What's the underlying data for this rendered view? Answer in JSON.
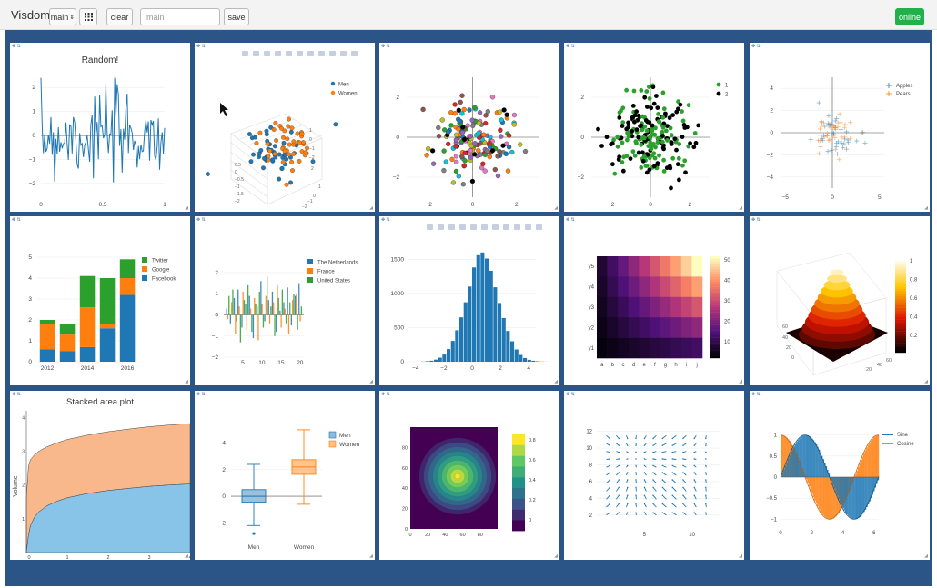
{
  "app": {
    "title": "Visdom"
  },
  "toolbar": {
    "env_select": "main",
    "env_select_arrow": "⇕",
    "grid_icon": "grid-icon",
    "clear_label": "clear",
    "filter_placeholder": "main",
    "save_label": "save",
    "status_label": "online"
  },
  "colors": {
    "board": "#2b5487",
    "online": "#22b04a",
    "blue": "#1f77b4",
    "orange": "#ff7f0e",
    "green": "#2ca02c",
    "black": "#000000"
  },
  "modebar_icons": [
    "camera-icon",
    "save-icon",
    "zoom-icon",
    "pan-icon",
    "zoom-in-icon",
    "zoom-out-icon",
    "autoscale-icon",
    "reset-icon",
    "spike-icon",
    "hover-icon",
    "plotly-icon"
  ],
  "pane_controls": {
    "drag_handle": "✥ ⇅",
    "resize_handle": "◢"
  },
  "chart_data": [
    {
      "id": "random-line",
      "type": "line",
      "title": "Random!",
      "xlim": [
        0,
        1
      ],
      "ylim": [
        -2.5,
        2.5
      ],
      "xticks": [
        "0",
        "0.5",
        "1"
      ],
      "yticks": [
        "2",
        "1",
        "0",
        "−1",
        "−2"
      ],
      "color": "#1f77b4",
      "points": 100
    },
    {
      "id": "scatter-3d",
      "type": "scatter",
      "title": "",
      "legend": [
        "Men",
        "Women"
      ],
      "legend_position": "top-right",
      "colors": [
        "#1f77b4",
        "#ff7f0e"
      ],
      "axis_ticks": [
        "1",
        "0",
        "−1",
        "−2",
        "2",
        "1",
        "0",
        "−1",
        "−2",
        "0.5",
        "0",
        "−0.5",
        "−1",
        "−1.5",
        "−2"
      ]
    },
    {
      "id": "scatter-multicolor",
      "type": "scatter",
      "title": "",
      "xticks": [
        "−2",
        "0",
        "2"
      ],
      "yticks": [
        "2",
        "0",
        "−2"
      ],
      "xlim": [
        -3,
        3
      ],
      "ylim": [
        -3,
        3
      ]
    },
    {
      "id": "scatter-two-class",
      "type": "scatter",
      "title": "",
      "legend": [
        "1",
        "2"
      ],
      "legend_position": "top-right",
      "colors": [
        "#2ca02c",
        "#000000"
      ],
      "xticks": [
        "−2",
        "0",
        "2"
      ],
      "yticks": [
        "2",
        "0",
        "−2"
      ],
      "xlim": [
        -3,
        3
      ],
      "ylim": [
        -3,
        3
      ]
    },
    {
      "id": "scatter-cross",
      "type": "scatter",
      "title": "",
      "legend": [
        "Apples",
        "Pears"
      ],
      "legend_position": "top-right",
      "colors": [
        "#1f77b4",
        "#ff7f0e"
      ],
      "xticks": [
        "−5",
        "0",
        "5"
      ],
      "yticks": [
        "4",
        "2",
        "0",
        "−2",
        "−4"
      ],
      "xlim": [
        -5.5,
        5.5
      ],
      "ylim": [
        -5,
        5
      ]
    },
    {
      "id": "stacked-bar",
      "type": "bar",
      "title": "",
      "categories": [
        "2012",
        "2013",
        "2014",
        "2015",
        "2016"
      ],
      "xticks": [
        "2012",
        "2014",
        "2016"
      ],
      "yticks": [
        "5",
        "4",
        "3",
        "2",
        "1",
        "0"
      ],
      "ylim": [
        0,
        5
      ],
      "series": [
        {
          "name": "Facebook",
          "values": [
            0.6,
            0.5,
            0.7,
            1.6,
            3.2
          ]
        },
        {
          "name": "Google",
          "values": [
            1.2,
            0.8,
            1.9,
            0.2,
            0.8
          ]
        },
        {
          "name": "Twitter",
          "values": [
            0.2,
            0.5,
            1.5,
            2.2,
            0.9
          ]
        }
      ],
      "colors": [
        "#1f77b4",
        "#ff7f0e",
        "#2ca02c"
      ],
      "legend_order": [
        "Twitter",
        "Google",
        "Facebook"
      ]
    },
    {
      "id": "grouped-bar",
      "type": "bar",
      "title": "",
      "legend": [
        "The Netherlands",
        "France",
        "United States"
      ],
      "colors": [
        "#1f77b4",
        "#ff7f0e",
        "#2ca02c"
      ],
      "xticks": [
        "5",
        "10",
        "15",
        "20"
      ],
      "yticks": [
        "2",
        "1",
        "0",
        "−1",
        "−2"
      ],
      "xlim": [
        0,
        21
      ],
      "ylim": [
        -2,
        2.3
      ],
      "series": [
        {
          "name": "The Netherlands",
          "values": [
            0.3,
            -0.4,
            0.8,
            1.2,
            -0.6,
            0.5,
            0.9,
            -1.1,
            0.4,
            1.6,
            -0.3,
            0.7,
            1.1,
            -0.8,
            0.2,
            0.6,
            1.3,
            -0.5,
            0.9,
            1.5
          ]
        },
        {
          "name": "France",
          "values": [
            -0.2,
            0.6,
            -0.9,
            0.4,
            1.1,
            -0.7,
            0.3,
            0.8,
            -1.2,
            0.5,
            0.9,
            -0.4,
            0.6,
            1.4,
            -0.6,
            0.3,
            -0.9,
            0.7,
            1.0,
            -0.3
          ]
        },
        {
          "name": "United States",
          "values": [
            0.9,
            1.2,
            -0.3,
            -1.3,
            0.7,
            1.4,
            -0.8,
            0.5,
            1.1,
            -0.6,
            1.8,
            0.4,
            -1.0,
            0.8,
            1.2,
            -0.4,
            0.6,
            1.0,
            -0.7,
            0.4
          ]
        }
      ]
    },
    {
      "id": "histogram",
      "type": "bar",
      "title": "",
      "xticks": [
        "−4",
        "−2",
        "0",
        "2",
        "4"
      ],
      "yticks": [
        "1500",
        "1000",
        "500",
        "0"
      ],
      "xlim": [
        -4.5,
        4.5
      ],
      "ylim": [
        0,
        1650
      ],
      "bin_width": 0.3,
      "bin_start": -3.6,
      "values": [
        3,
        8,
        15,
        30,
        60,
        105,
        185,
        305,
        460,
        650,
        870,
        1100,
        1380,
        1560,
        1600,
        1510,
        1330,
        1090,
        860,
        640,
        450,
        300,
        180,
        100,
        55,
        28,
        14,
        6,
        2,
        1
      ],
      "color": "#1f77b4"
    },
    {
      "id": "heatmap",
      "type": "heatmap",
      "title": "",
      "xticks": [
        "a",
        "b",
        "c",
        "d",
        "e",
        "f",
        "g",
        "h",
        "i",
        "j"
      ],
      "yticks": [
        "y5",
        "y4",
        "y3",
        "y2",
        "y1"
      ],
      "colorbar_ticks": [
        "50",
        "40",
        "30",
        "20",
        "10"
      ],
      "zlim": [
        0,
        50
      ],
      "values": [
        [
          5,
          10,
          15,
          20,
          25,
          30,
          35,
          40,
          45,
          50
        ],
        [
          4,
          8,
          12,
          16,
          20,
          24,
          28,
          32,
          36,
          40
        ],
        [
          3,
          6,
          9,
          12,
          15,
          18,
          21,
          24,
          27,
          30
        ],
        [
          2,
          4,
          6,
          8,
          10,
          12,
          14,
          16,
          18,
          20
        ],
        [
          1,
          2,
          3,
          4,
          5,
          6,
          7,
          8,
          9,
          10
        ]
      ]
    },
    {
      "id": "surface-3d",
      "type": "area",
      "title": "",
      "colorbar_ticks": [
        "1",
        "0.8",
        "0.6",
        "0.4",
        "0.2"
      ],
      "axis_ticks": [
        "60",
        "40",
        "20",
        "0",
        "20",
        "40",
        "60"
      ]
    },
    {
      "id": "stacked-area",
      "type": "area",
      "title": "Stacked area plot",
      "ylabel": "Volume",
      "xticks": [
        "0",
        "1",
        "2",
        "3",
        "4"
      ],
      "yticks": [
        "4",
        "3",
        "2",
        "1",
        "0"
      ],
      "xlim": [
        0,
        4
      ],
      "ylim": [
        0,
        4.2
      ],
      "series": [
        {
          "name": "lower",
          "x": [
            0,
            0.05,
            0.1,
            0.2,
            0.3,
            0.5,
            0.75,
            1,
            1.5,
            2,
            2.5,
            3,
            3.5,
            4
          ],
          "values": [
            0,
            0.5,
            0.8,
            1.05,
            1.2,
            1.38,
            1.52,
            1.62,
            1.75,
            1.84,
            1.9,
            1.96,
            2.0,
            2.03
          ]
        },
        {
          "name": "upper",
          "x": [
            0,
            0.05,
            0.1,
            0.2,
            0.3,
            0.5,
            0.75,
            1,
            1.5,
            2,
            2.5,
            3,
            3.5,
            4
          ],
          "values": [
            1.6,
            2.55,
            2.75,
            2.9,
            3.0,
            3.13,
            3.25,
            3.35,
            3.48,
            3.58,
            3.66,
            3.73,
            3.78,
            3.82
          ]
        }
      ],
      "colors": [
        "#88c4e8",
        "#f8b88b"
      ]
    },
    {
      "id": "boxplot",
      "type": "bar",
      "title": "",
      "categories": [
        "Men",
        "Women"
      ],
      "legend": [
        "Men",
        "Women"
      ],
      "xticks": [
        "Men",
        "Women"
      ],
      "yticks": [
        "4",
        "2",
        "0",
        "−2"
      ],
      "ylim": [
        -3,
        5.2
      ],
      "series": [
        {
          "name": "Men",
          "q1": -0.45,
          "median": 0.0,
          "q3": 0.5,
          "whisker_low": -2.2,
          "whisker_high": 2.4,
          "outliers": [
            -2.8
          ]
        },
        {
          "name": "Women",
          "q1": 1.65,
          "median": 2.2,
          "q3": 2.75,
          "whisker_low": -0.6,
          "whisker_high": 5.0,
          "outliers": []
        }
      ],
      "colors": [
        "#1f77b4",
        "#ff7f0e"
      ]
    },
    {
      "id": "contour",
      "type": "heatmap",
      "title": "",
      "xticks": [
        "0",
        "20",
        "40",
        "60",
        "80"
      ],
      "yticks": [
        "80",
        "60",
        "40",
        "20",
        "0"
      ],
      "xlim": [
        0,
        100
      ],
      "ylim": [
        0,
        100
      ],
      "colorbar_ticks": [
        "0.8",
        "0.6",
        "0.4",
        "0.2",
        "0"
      ],
      "zlim": [
        0,
        1
      ]
    },
    {
      "id": "quiver",
      "type": "scatter",
      "title": "",
      "xticks": [
        "5",
        "10"
      ],
      "yticks": [
        "12",
        "10",
        "8",
        "6",
        "4",
        "2"
      ],
      "xlim": [
        0,
        13
      ],
      "ylim": [
        1,
        12.5
      ]
    },
    {
      "id": "sine-cosine",
      "type": "line",
      "title": "",
      "legend": [
        "Sine",
        "Cosine"
      ],
      "legend_position": "top-right",
      "xticks": [
        "0",
        "2",
        "4",
        "6"
      ],
      "yticks": [
        "1",
        "0.5",
        "0",
        "−0.5",
        "−1"
      ],
      "xlim": [
        0,
        6.3
      ],
      "ylim": [
        -1.1,
        1.1
      ],
      "colors": [
        "#1f77b4",
        "#ff7f0e"
      ]
    }
  ]
}
